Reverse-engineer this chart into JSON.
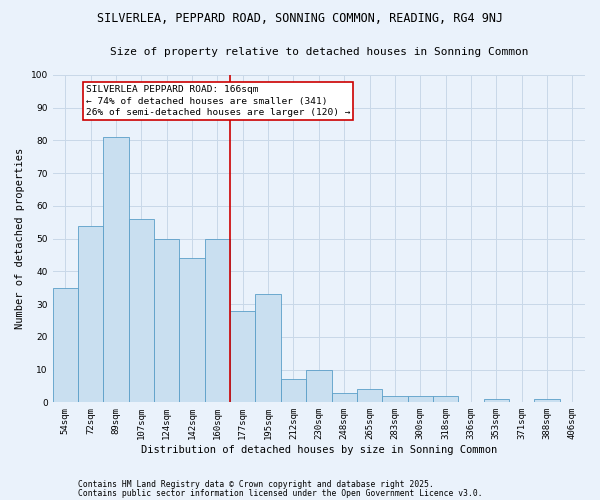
{
  "title": "SILVERLEA, PEPPARD ROAD, SONNING COMMON, READING, RG4 9NJ",
  "subtitle": "Size of property relative to detached houses in Sonning Common",
  "xlabel": "Distribution of detached houses by size in Sonning Common",
  "ylabel": "Number of detached properties",
  "categories": [
    "54sqm",
    "72sqm",
    "89sqm",
    "107sqm",
    "124sqm",
    "142sqm",
    "160sqm",
    "177sqm",
    "195sqm",
    "212sqm",
    "230sqm",
    "248sqm",
    "265sqm",
    "283sqm",
    "300sqm",
    "318sqm",
    "336sqm",
    "353sqm",
    "371sqm",
    "388sqm",
    "406sqm"
  ],
  "values": [
    35,
    54,
    81,
    56,
    50,
    44,
    50,
    28,
    33,
    7,
    10,
    3,
    4,
    2,
    2,
    2,
    0,
    1,
    0,
    1,
    0
  ],
  "bar_color": "#c9dff0",
  "bar_edge_color": "#5a9ec8",
  "grid_color": "#c8d8e8",
  "background_color": "#eaf2fb",
  "vline_color": "#cc0000",
  "annotation_text": "SILVERLEA PEPPARD ROAD: 166sqm\n← 74% of detached houses are smaller (341)\n26% of semi-detached houses are larger (120) →",
  "annotation_box_color": "#cc0000",
  "ylim": [
    0,
    100
  ],
  "yticks": [
    0,
    10,
    20,
    30,
    40,
    50,
    60,
    70,
    80,
    90,
    100
  ],
  "footer1": "Contains HM Land Registry data © Crown copyright and database right 2025.",
  "footer2": "Contains public sector information licensed under the Open Government Licence v3.0.",
  "title_fontsize": 8.5,
  "subtitle_fontsize": 8,
  "axis_label_fontsize": 7.5,
  "tick_fontsize": 6.5,
  "annotation_fontsize": 6.8,
  "footer_fontsize": 5.8
}
